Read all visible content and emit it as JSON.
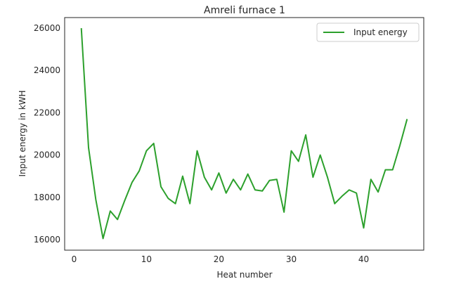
{
  "chart_data": {
    "type": "line",
    "title": "Amreli furnace 1",
    "xlabel": "Heat number",
    "ylabel": "Input energy in kWH",
    "xlim": [
      -1.3,
      48.3
    ],
    "ylim": [
      15500,
      26500
    ],
    "xticks": [
      0,
      10,
      20,
      30,
      40
    ],
    "yticks": [
      16000,
      18000,
      20000,
      22000,
      24000,
      26000
    ],
    "grid": false,
    "legend_position": "top-right",
    "series": [
      {
        "name": "Input energy",
        "color": "#2ca02c",
        "x": [
          1,
          2,
          3,
          4,
          5,
          6,
          7,
          8,
          9,
          10,
          11,
          12,
          13,
          14,
          15,
          16,
          17,
          18,
          19,
          20,
          21,
          22,
          23,
          24,
          25,
          26,
          27,
          28,
          29,
          30,
          31,
          32,
          33,
          34,
          35,
          36,
          37,
          38,
          39,
          40,
          41,
          42,
          43,
          44,
          45,
          46
        ],
        "y": [
          26000,
          20350,
          17900,
          16050,
          17350,
          16950,
          17850,
          18700,
          19250,
          20200,
          20550,
          18500,
          17950,
          17700,
          19000,
          17700,
          20200,
          18950,
          18350,
          19150,
          18200,
          18850,
          18350,
          19100,
          18350,
          18300,
          18800,
          18850,
          17300,
          20200,
          19700,
          20950,
          18950,
          20000,
          18950,
          17700,
          18050,
          18350,
          18200,
          16550,
          18850,
          18250,
          19300,
          19300,
          20450,
          21700
        ]
      }
    ]
  }
}
